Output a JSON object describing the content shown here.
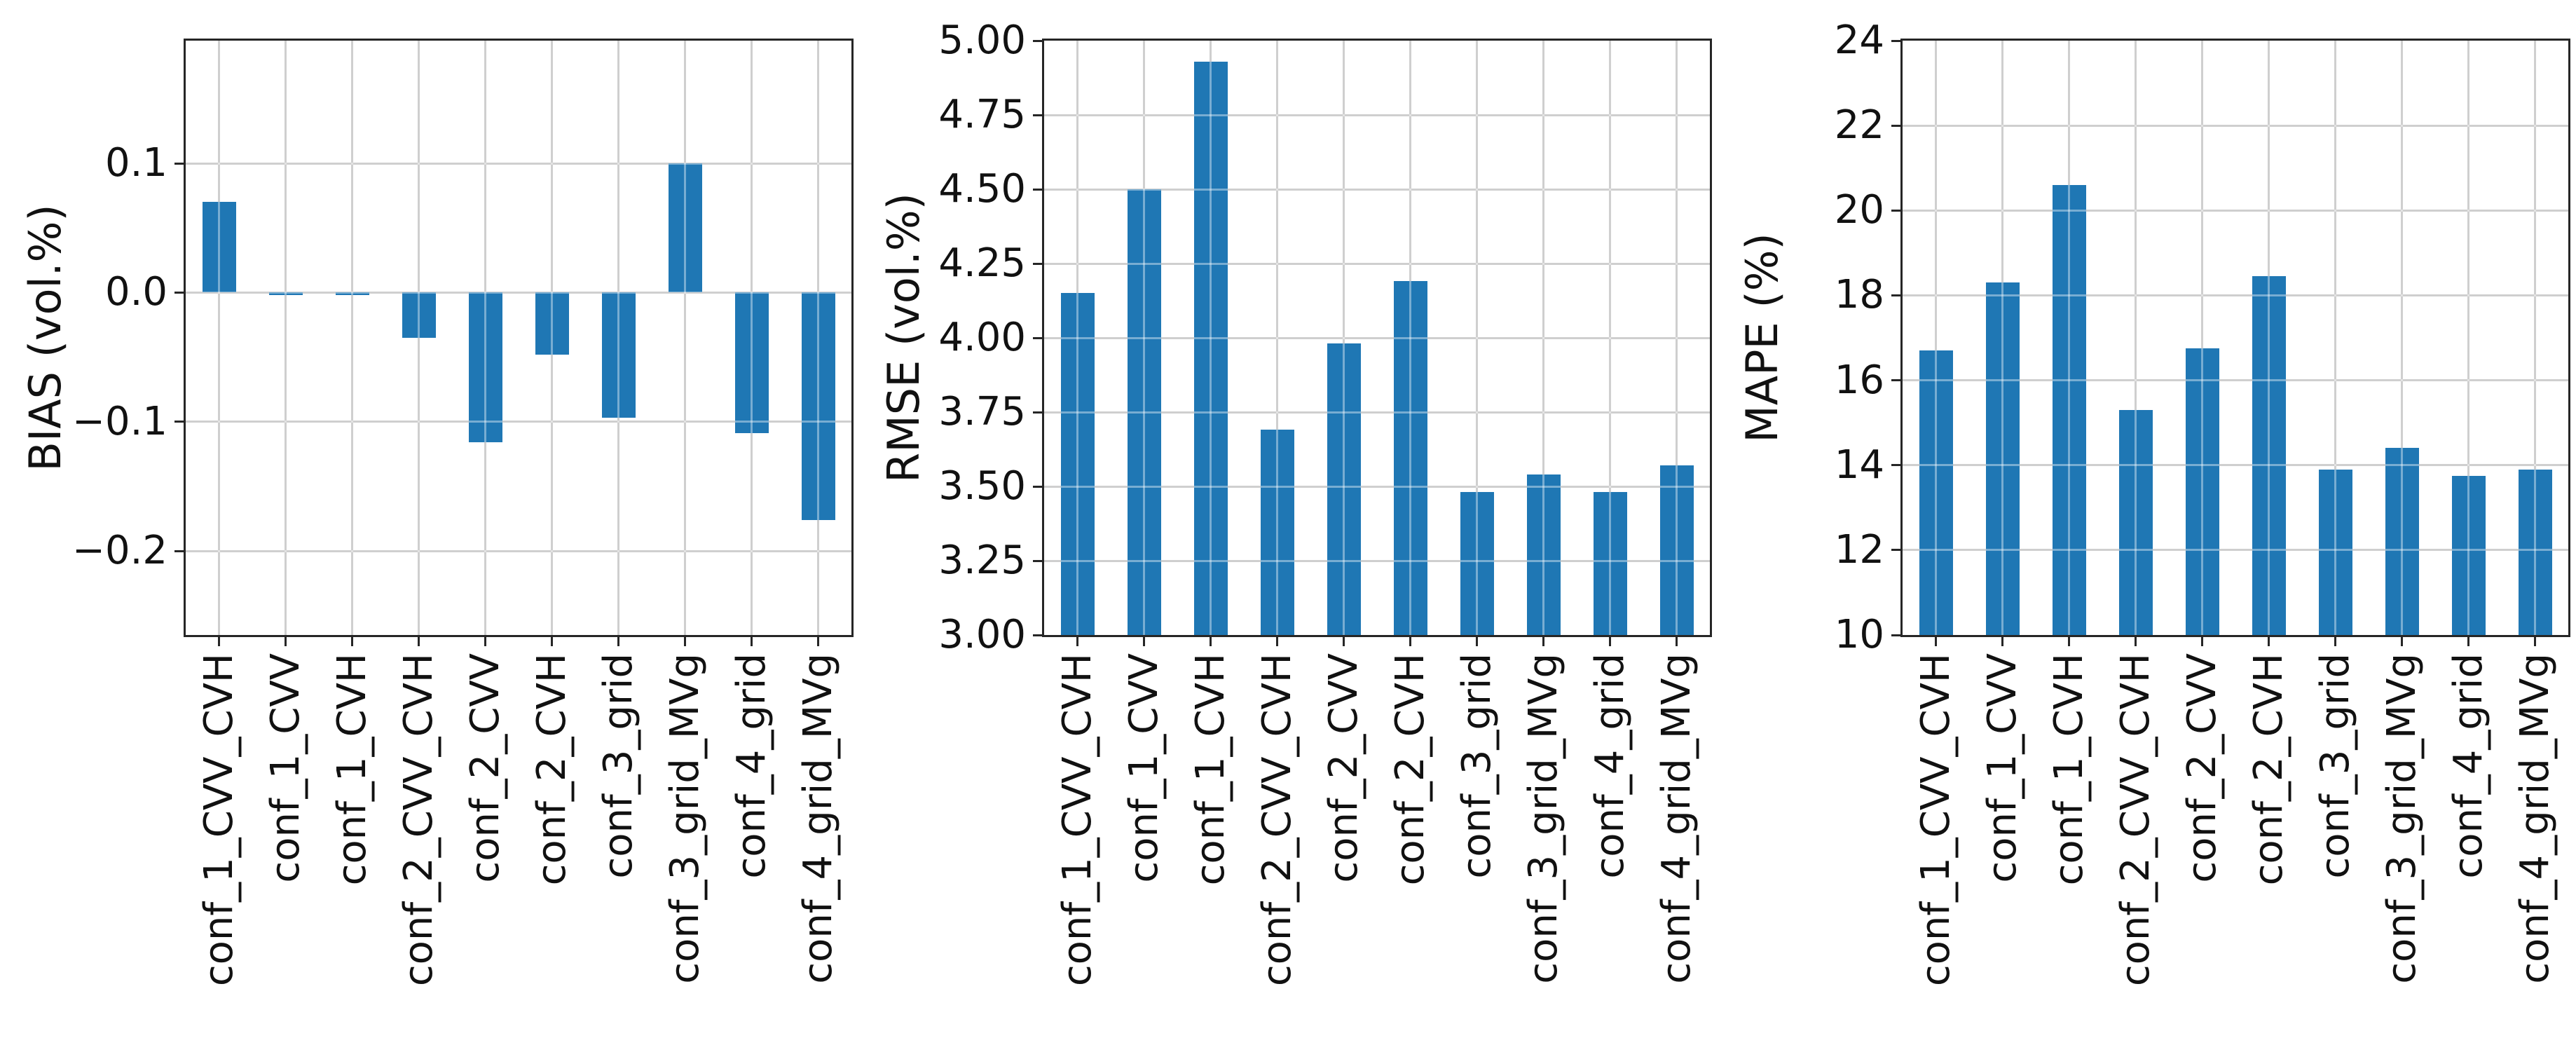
{
  "figure": {
    "background": "#ffffff",
    "bar_color": "#1f77b4",
    "grid_color": "#b0b0b0",
    "spine_color": "#262626",
    "text_color": "#111111"
  },
  "chart_data": [
    {
      "type": "bar",
      "title": "",
      "xlabel": "",
      "ylabel": "BIAS (vol.%)",
      "legend": null,
      "grid": true,
      "bar_width_fraction": 0.5,
      "categories": [
        "conf_1_CVV_CVH",
        "conf_1_CVV",
        "conf_1_CVH",
        "conf_2_CVV_CVH",
        "conf_2_CVV",
        "conf_2_CVH",
        "conf_3_grid",
        "conf_3_grid_MVg",
        "conf_4_grid",
        "conf_4_grid_MVg"
      ],
      "values": [
        0.07,
        -0.002,
        -0.002,
        -0.035,
        -0.116,
        -0.048,
        -0.097,
        0.1,
        -0.109,
        -0.176
      ],
      "baseline": 0,
      "ylim": [
        -0.265,
        0.195
      ],
      "yticks": [
        {
          "value": 0.1,
          "label": "0.1"
        },
        {
          "value": 0.0,
          "label": "0.0"
        },
        {
          "value": -0.1,
          "label": "−0.1"
        },
        {
          "value": -0.2,
          "label": "−0.2"
        }
      ]
    },
    {
      "type": "bar",
      "title": "",
      "xlabel": "",
      "ylabel": "RMSE (vol.%)",
      "legend": null,
      "grid": true,
      "bar_width_fraction": 0.5,
      "categories": [
        "conf_1_CVV_CVH",
        "conf_1_CVV",
        "conf_1_CVH",
        "conf_2_CVV_CVH",
        "conf_2_CVV",
        "conf_2_CVH",
        "conf_3_grid",
        "conf_3_grid_MVg",
        "conf_4_grid",
        "conf_4_grid_MVg"
      ],
      "values": [
        4.15,
        4.5,
        4.93,
        3.69,
        3.98,
        4.19,
        3.48,
        3.54,
        3.48,
        3.57
      ],
      "baseline": 3.0,
      "ylim": [
        3.0,
        5.0
      ],
      "yticks": [
        {
          "value": 5.0,
          "label": "5.00"
        },
        {
          "value": 4.75,
          "label": "4.75"
        },
        {
          "value": 4.5,
          "label": "4.50"
        },
        {
          "value": 4.25,
          "label": "4.25"
        },
        {
          "value": 4.0,
          "label": "4.00"
        },
        {
          "value": 3.75,
          "label": "3.75"
        },
        {
          "value": 3.5,
          "label": "3.50"
        },
        {
          "value": 3.25,
          "label": "3.25"
        },
        {
          "value": 3.0,
          "label": "3.00"
        }
      ]
    },
    {
      "type": "bar",
      "title": "",
      "xlabel": "",
      "ylabel": "MAPE (%)",
      "legend": null,
      "grid": true,
      "bar_width_fraction": 0.5,
      "categories": [
        "conf_1_CVV_CVH",
        "conf_1_CVV",
        "conf_1_CVH",
        "conf_2_CVV_CVH",
        "conf_2_CVV",
        "conf_2_CVH",
        "conf_3_grid",
        "conf_3_grid_MVg",
        "conf_4_grid",
        "conf_4_grid_MVg"
      ],
      "values": [
        16.7,
        18.3,
        20.6,
        15.3,
        16.75,
        18.45,
        13.9,
        14.4,
        13.75,
        13.9
      ],
      "baseline": 10,
      "ylim": [
        10,
        24
      ],
      "yticks": [
        {
          "value": 24,
          "label": "24"
        },
        {
          "value": 22,
          "label": "22"
        },
        {
          "value": 20,
          "label": "20"
        },
        {
          "value": 18,
          "label": "18"
        },
        {
          "value": 16,
          "label": "16"
        },
        {
          "value": 14,
          "label": "14"
        },
        {
          "value": 12,
          "label": "12"
        },
        {
          "value": 10,
          "label": "10"
        }
      ]
    }
  ]
}
